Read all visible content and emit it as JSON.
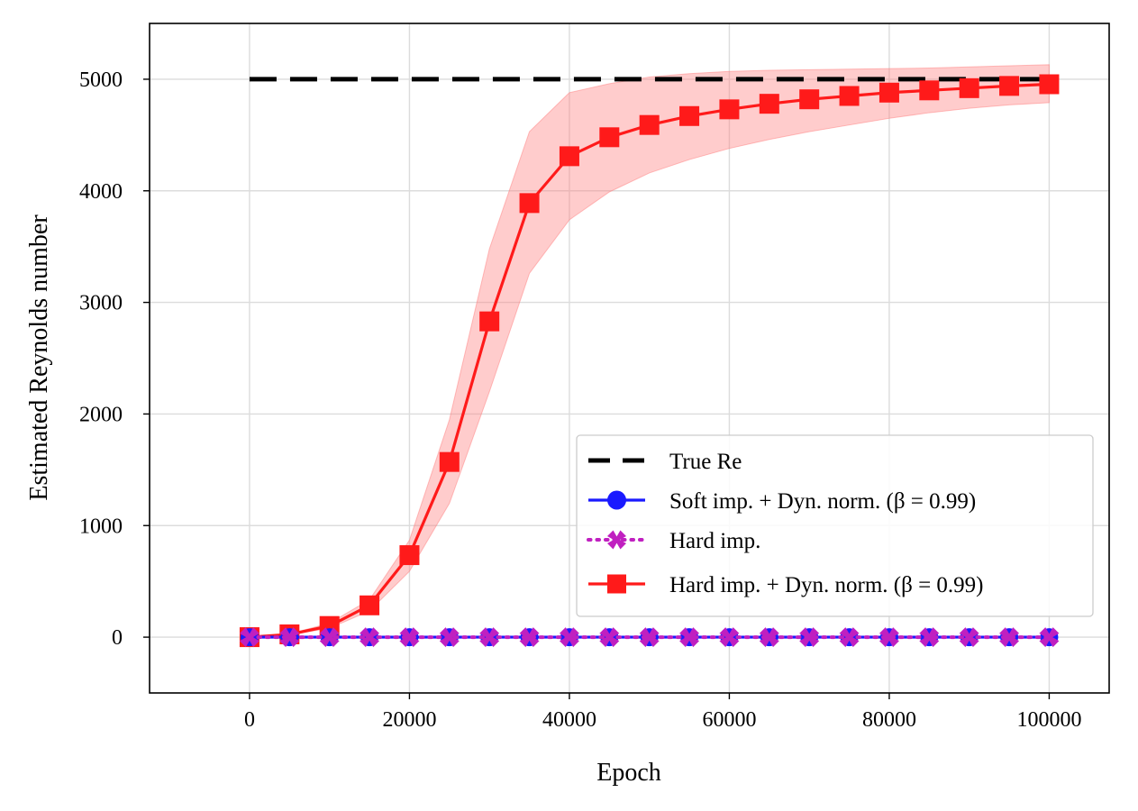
{
  "chart_data": {
    "type": "line",
    "title": "",
    "xlabel": "Epoch",
    "ylabel": "Estimated Reynolds number",
    "xlim": [
      -12500,
      107500
    ],
    "ylim": [
      -500,
      5500
    ],
    "xticks": [
      0,
      20000,
      40000,
      60000,
      80000,
      100000
    ],
    "yticks": [
      0,
      1000,
      2000,
      3000,
      4000,
      5000
    ],
    "xtick_labels": [
      "0",
      "20000",
      "40000",
      "60000",
      "80000",
      "100000"
    ],
    "ytick_labels": [
      "0",
      "1000",
      "2000",
      "3000",
      "4000",
      "5000"
    ],
    "grid": true,
    "legend_position": "lower-right",
    "x": [
      0,
      5000,
      10000,
      15000,
      20000,
      25000,
      30000,
      35000,
      40000,
      45000,
      50000,
      55000,
      60000,
      65000,
      70000,
      75000,
      80000,
      85000,
      90000,
      95000,
      100000
    ],
    "series": [
      {
        "name": "True Re",
        "style": "dashed",
        "marker": "none",
        "color": "#000000",
        "x": [
          0,
          100000
        ],
        "values": [
          5000,
          5000
        ]
      },
      {
        "name": "Soft imp. + Dyn. norm. (β = 0.99)",
        "style": "solid",
        "marker": "circle",
        "color": "#1a1aff",
        "values": [
          0,
          0,
          0,
          0,
          0,
          0,
          0,
          0,
          0,
          0,
          0,
          0,
          0,
          0,
          0,
          0,
          0,
          0,
          0,
          0,
          0
        ]
      },
      {
        "name": "Hard imp.",
        "style": "dotted",
        "marker": "x",
        "color": "#c020c0",
        "values": [
          0,
          0,
          0,
          0,
          0,
          0,
          0,
          0,
          0,
          0,
          0,
          0,
          0,
          0,
          0,
          0,
          0,
          0,
          0,
          0,
          0
        ]
      },
      {
        "name": "Hard imp. + Dyn. norm. (β = 0.99)",
        "style": "solid",
        "marker": "square",
        "color": "#ff1a1a",
        "band_color": "#ff8080",
        "values": [
          0,
          25,
          100,
          285,
          735,
          1570,
          2830,
          3890,
          4310,
          4480,
          4590,
          4670,
          4730,
          4780,
          4820,
          4850,
          4880,
          4900,
          4920,
          4940,
          4955
        ],
        "upper": [
          0,
          30,
          125,
          335,
          870,
          1950,
          3480,
          4530,
          4880,
          4960,
          5020,
          5050,
          5070,
          5080,
          5085,
          5090,
          5095,
          5100,
          5110,
          5120,
          5130
        ],
        "lower": [
          0,
          20,
          80,
          235,
          590,
          1200,
          2200,
          3260,
          3740,
          3990,
          4160,
          4280,
          4380,
          4460,
          4530,
          4590,
          4650,
          4700,
          4740,
          4770,
          4790
        ]
      }
    ]
  }
}
